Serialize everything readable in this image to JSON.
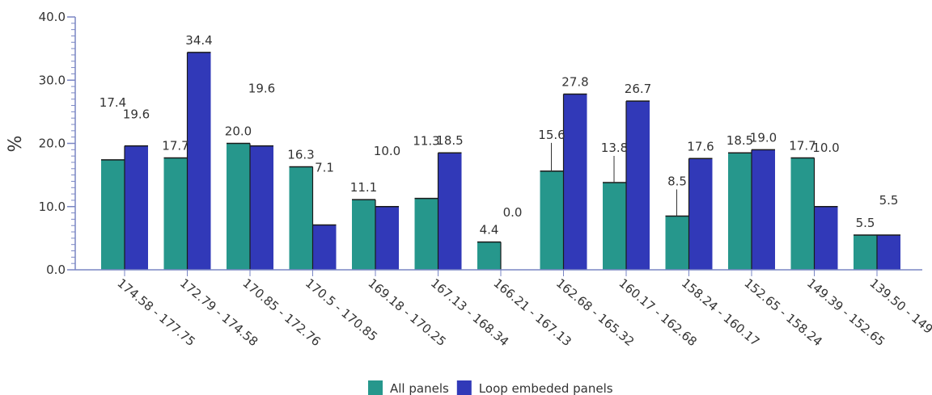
{
  "chart_data": {
    "type": "bar",
    "title": "",
    "xlabel": "",
    "ylabel": "%",
    "ylim": [
      0,
      40
    ],
    "yticks": [
      "0.0",
      "10.0",
      "20.0",
      "30.0",
      "40.0"
    ],
    "grid": false,
    "legend_position": "bottom",
    "categories": [
      "174.58 - 177.75",
      "172.79 - 174.58",
      "170.85 - 172.76",
      "170.5 - 170.85",
      "169.18 - 170.25",
      "167.13 - 168.34",
      "166.21 - 167.13",
      "162.68 - 165.32",
      "160.17 - 162.68",
      "158.24 - 160.17",
      "152.65 - 158.24",
      "149.39 - 152.65",
      "139.50 - 149"
    ],
    "series": [
      {
        "name": "All panels",
        "color": "#26978c",
        "values": [
          17.4,
          17.7,
          20.0,
          16.3,
          11.1,
          11.3,
          4.4,
          15.6,
          13.8,
          8.5,
          18.5,
          17.7,
          5.5
        ],
        "labels": [
          "17.4",
          "17.7",
          "20.0",
          "16.3",
          "11.1",
          "11.3",
          "4.4",
          "15.6",
          "13.8",
          "8.5",
          "18.5",
          "17.7",
          "5.5"
        ]
      },
      {
        "name": "Loop embeded panels",
        "color": "#3139b8",
        "values": [
          19.6,
          34.4,
          19.6,
          7.1,
          10.0,
          18.5,
          0.0,
          27.8,
          26.7,
          17.6,
          19.0,
          10.0,
          5.5
        ],
        "labels": [
          "19.6",
          "34.4",
          "19.6",
          "7.1",
          "10.0",
          "18.5",
          "0.0",
          "27.8",
          "26.7",
          "17.6",
          "19.0",
          "10.0",
          "5.5"
        ]
      }
    ]
  }
}
